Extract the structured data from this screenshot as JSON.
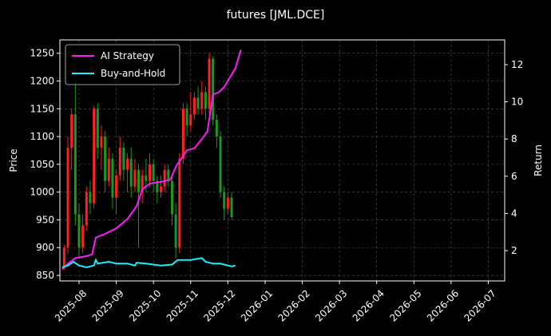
{
  "chart_data": {
    "type": "candlestick",
    "title": "futures [JML.DCE]",
    "y_label": "Price",
    "y2_label": "Return",
    "xlim": [
      -0.515,
      11.44
    ],
    "xticks": [
      {
        "value": 0,
        "label": "2025-08"
      },
      {
        "value": 1,
        "label": "2025-09"
      },
      {
        "value": 2,
        "label": "2025-10"
      },
      {
        "value": 3,
        "label": "2025-11"
      },
      {
        "value": 4,
        "label": "2025-12"
      },
      {
        "value": 5,
        "label": "2026-01"
      },
      {
        "value": 6,
        "label": "2026-02"
      },
      {
        "value": 7,
        "label": "2026-03"
      },
      {
        "value": 8,
        "label": "2026-04"
      },
      {
        "value": 9,
        "label": "2026-05"
      },
      {
        "value": 10,
        "label": "2026-06"
      },
      {
        "value": 11,
        "label": "2026-07"
      }
    ],
    "ylim": [
      840,
      1274
    ],
    "yticks": [
      850,
      900,
      950,
      1000,
      1050,
      1100,
      1150,
      1200,
      1250
    ],
    "y2lim": [
      0.37,
      13.33
    ],
    "y2ticks": [
      2,
      4,
      6,
      8,
      10,
      12
    ],
    "grid": true,
    "legend": "upper left",
    "up_color": "#ff2020",
    "down_color": "#1a9a1a",
    "candles": {
      "x": [
        -0.4,
        -0.3,
        -0.2,
        -0.1,
        0.0,
        0.1,
        0.2,
        0.3,
        0.4,
        0.5,
        0.6,
        0.7,
        0.8,
        0.9,
        1.0,
        1.1,
        1.2,
        1.3,
        1.4,
        1.5,
        1.6,
        1.7,
        1.8,
        1.9,
        2.0,
        2.1,
        2.2,
        2.3,
        2.4,
        2.5,
        2.6,
        2.7,
        2.8,
        2.9,
        3.0,
        3.1,
        3.2,
        3.3,
        3.4,
        3.5,
        3.6,
        3.7,
        3.8,
        3.9,
        4.0,
        4.1
      ],
      "open": [
        865,
        900,
        1080,
        1140,
        960,
        900,
        940,
        1000,
        980,
        1150,
        1080,
        1100,
        1020,
        1060,
        990,
        1030,
        1080,
        1040,
        1060,
        1010,
        1040,
        1000,
        1030,
        1020,
        1050,
        1020,
        1000,
        1010,
        1040,
        1020,
        960,
        900,
        1060,
        1150,
        1120,
        1140,
        1170,
        1150,
        1180,
        1150,
        1240,
        1130,
        1100,
        1000,
        970,
        990
      ],
      "high": [
        905,
        1100,
        1150,
        1200,
        980,
        960,
        1010,
        1020,
        1155,
        1160,
        1120,
        1110,
        1080,
        1070,
        1040,
        1100,
        1090,
        1070,
        1080,
        1060,
        1050,
        1040,
        1060,
        1070,
        1060,
        1030,
        1030,
        1050,
        1050,
        1030,
        980,
        1070,
        1160,
        1160,
        1180,
        1180,
        1190,
        1200,
        1190,
        1250,
        1245,
        1140,
        1110,
        1010,
        1000,
        1000
      ],
      "low": [
        860,
        890,
        1040,
        940,
        880,
        890,
        930,
        960,
        970,
        1060,
        1040,
        1000,
        1010,
        970,
        960,
        1020,
        1020,
        1000,
        990,
        1000,
        900,
        980,
        1000,
        1010,
        1000,
        980,
        990,
        1000,
        1010,
        940,
        880,
        890,
        1050,
        1100,
        1110,
        1130,
        1140,
        1140,
        1130,
        1140,
        1120,
        1080,
        990,
        950,
        960,
        950
      ],
      "close": [
        900,
        1080,
        1140,
        960,
        900,
        940,
        1000,
        980,
        1150,
        1080,
        1100,
        1020,
        1060,
        990,
        1030,
        1080,
        1040,
        1060,
        1010,
        1040,
        1000,
        1030,
        1020,
        1050,
        1020,
        1000,
        1010,
        1040,
        1020,
        960,
        900,
        1060,
        1150,
        1120,
        1140,
        1170,
        1150,
        1180,
        1150,
        1240,
        1130,
        1100,
        1000,
        970,
        990,
        955
      ]
    },
    "series": [
      {
        "name": "AI Strategy",
        "color": "#ff19ff",
        "axis": "y2",
        "x": [
          -0.45,
          -0.3,
          -0.1,
          0.2,
          0.35,
          0.45,
          0.7,
          1.0,
          1.3,
          1.55,
          1.7,
          1.9,
          2.2,
          2.45,
          2.6,
          2.9,
          3.1,
          3.3,
          3.45,
          3.6,
          3.75,
          3.9,
          4.05,
          4.2,
          4.35
        ],
        "values": [
          1.0,
          1.3,
          1.6,
          1.7,
          1.8,
          2.7,
          2.9,
          3.2,
          3.7,
          4.4,
          5.3,
          5.6,
          5.7,
          5.8,
          6.5,
          7.4,
          7.5,
          8.0,
          8.4,
          10.4,
          10.5,
          10.8,
          11.3,
          11.8,
          12.8
        ]
      },
      {
        "name": "Buy-and-Hold",
        "color": "#19f0ff",
        "axis": "y2",
        "x": [
          -0.45,
          -0.3,
          -0.15,
          0.0,
          0.2,
          0.4,
          0.45,
          0.5,
          0.8,
          1.0,
          1.3,
          1.5,
          1.55,
          1.8,
          2.2,
          2.5,
          2.65,
          3.0,
          3.3,
          3.4,
          3.6,
          3.8,
          4.0,
          4.1,
          4.2
        ],
        "values": [
          1.1,
          1.2,
          1.4,
          1.2,
          1.1,
          1.2,
          1.5,
          1.3,
          1.4,
          1.3,
          1.3,
          1.2,
          1.35,
          1.3,
          1.2,
          1.25,
          1.5,
          1.5,
          1.6,
          1.4,
          1.3,
          1.3,
          1.2,
          1.15,
          1.2
        ]
      }
    ]
  }
}
